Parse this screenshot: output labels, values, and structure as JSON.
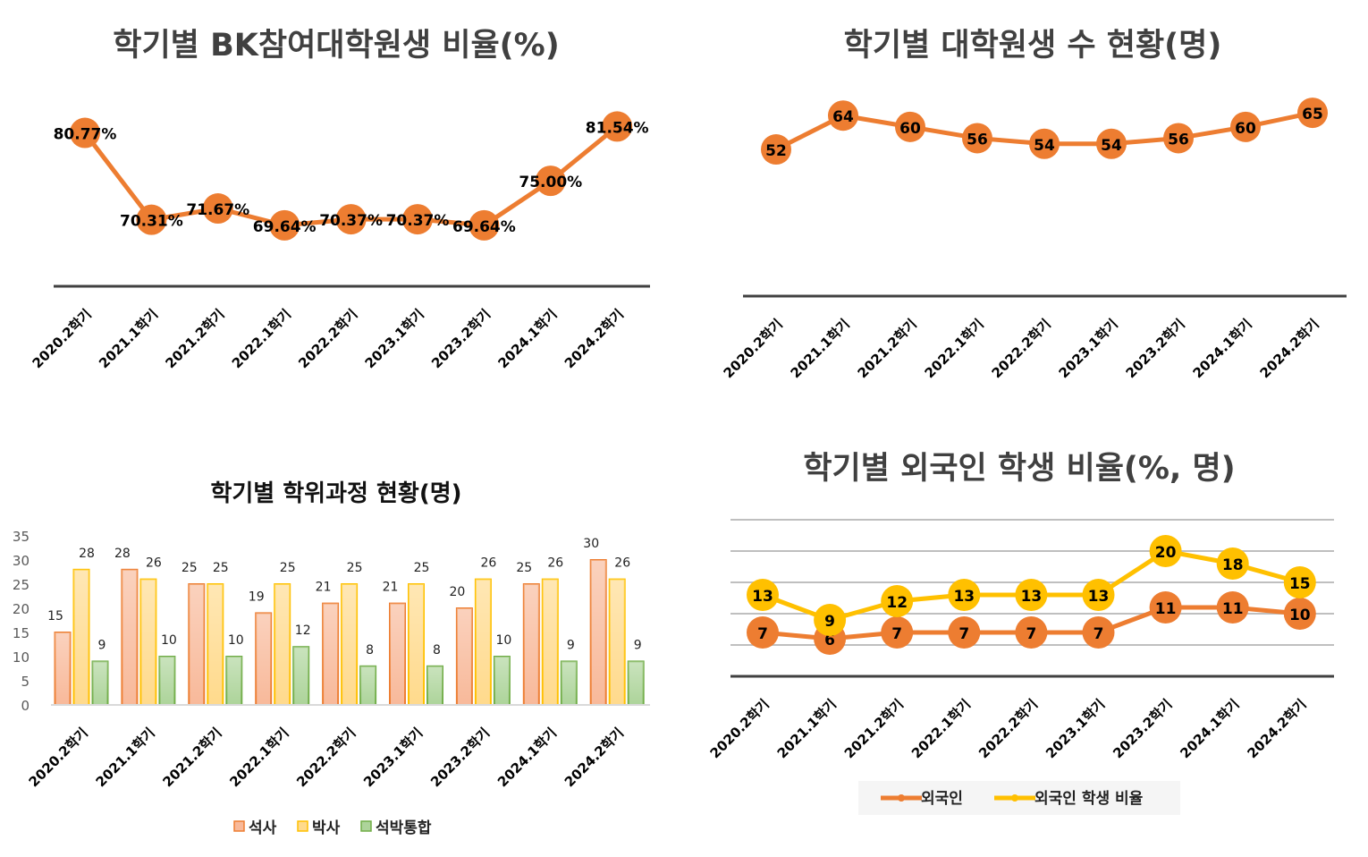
{
  "colors": {
    "orange": "#ED7D31",
    "yellow": "#FFC000",
    "green": "#70AD47",
    "axis": "#404040",
    "grid": "#BFBFBF"
  },
  "chart_data": [
    {
      "type": "line",
      "title": "학기별 BK참여대학원생 비율(%)",
      "categories": [
        "2020.2학기",
        "2021.1학기",
        "2021.2학기",
        "2022.1학기",
        "2022.2학기",
        "2023.1학기",
        "2023.2학기",
        "2024.1학기",
        "2024.2학기"
      ],
      "series": [
        {
          "values": [
            80.77,
            70.31,
            71.67,
            69.64,
            70.37,
            70.37,
            69.64,
            75.0,
            81.54
          ],
          "labels": [
            "80.77%",
            "70.31%",
            "71.67%",
            "69.64%",
            "70.37%",
            "70.37%",
            "69.64%",
            "75.00%",
            "81.54%"
          ],
          "color": "#ED7D31"
        }
      ],
      "ylim": [
        62.3,
        86
      ],
      "grid": false,
      "legend": "none"
    },
    {
      "type": "line",
      "title": "학기별 대학원생 수 현황(명)",
      "categories": [
        "2020.2학기",
        "2021.1학기",
        "2021.2학기",
        "2022.1학기",
        "2022.2학기",
        "2023.1학기",
        "2023.2학기",
        "2024.1학기",
        "2024.2학기"
      ],
      "series": [
        {
          "values": [
            52,
            64,
            60,
            56,
            54,
            54,
            56,
            60,
            65
          ],
          "labels": [
            "52",
            "64",
            "60",
            "56",
            "54",
            "54",
            "56",
            "60",
            "65"
          ],
          "color": "#ED7D31"
        }
      ],
      "ylim": [
        0,
        72
      ],
      "grid": false,
      "legend": "none"
    },
    {
      "type": "bar",
      "title": "학기별 학위과정 현황(명)",
      "categories": [
        "2020.2학기",
        "2021.1학기",
        "2021.2학기",
        "2022.1학기",
        "2022.2학기",
        "2023.1학기",
        "2023.2학기",
        "2024.1학기",
        "2024.2학기"
      ],
      "series": [
        {
          "name": "석사",
          "values": [
            15,
            28,
            25,
            19,
            21,
            21,
            20,
            25,
            30
          ],
          "color": "#ED7D31",
          "fill": "#F8B99A"
        },
        {
          "name": "박사",
          "values": [
            28,
            26,
            25,
            25,
            25,
            25,
            26,
            26,
            26
          ],
          "color": "#FFC000",
          "fill": "#FFDA8C"
        },
        {
          "name": "석박통합",
          "values": [
            9,
            10,
            10,
            12,
            8,
            8,
            10,
            9,
            9
          ],
          "color": "#70AD47",
          "fill": "#ADD49A"
        }
      ],
      "yticks": [
        "0",
        "5",
        "10",
        "15",
        "20",
        "25",
        "30",
        "35"
      ],
      "ylim": [
        0,
        35
      ],
      "grid": false,
      "legend": "bottom"
    },
    {
      "type": "line",
      "title": "학기별 외국인 학생 비율(%, 명)",
      "categories": [
        "2020.2학기",
        "2021.1학기",
        "2021.2학기",
        "2022.1학기",
        "2022.2학기",
        "2023.1학기",
        "2023.2학기",
        "2024.1학기",
        "2024.2학기"
      ],
      "series": [
        {
          "name": "외국인",
          "values": [
            7,
            6,
            7,
            7,
            7,
            7,
            11,
            11,
            10
          ],
          "labels": [
            "7",
            "6",
            "7",
            "7",
            "7",
            "7",
            "11",
            "11",
            "10"
          ],
          "color": "#ED7D31"
        },
        {
          "name": "외국인 학생 비율",
          "values": [
            13,
            9,
            12,
            13,
            13,
            13,
            20,
            18,
            15
          ],
          "labels": [
            "13",
            "9",
            "12",
            "13",
            "13",
            "13",
            "20",
            "18",
            "15"
          ],
          "color": "#FFC000"
        }
      ],
      "ylim": [
        0,
        25
      ],
      "grid": true,
      "legend": "bottom"
    }
  ]
}
